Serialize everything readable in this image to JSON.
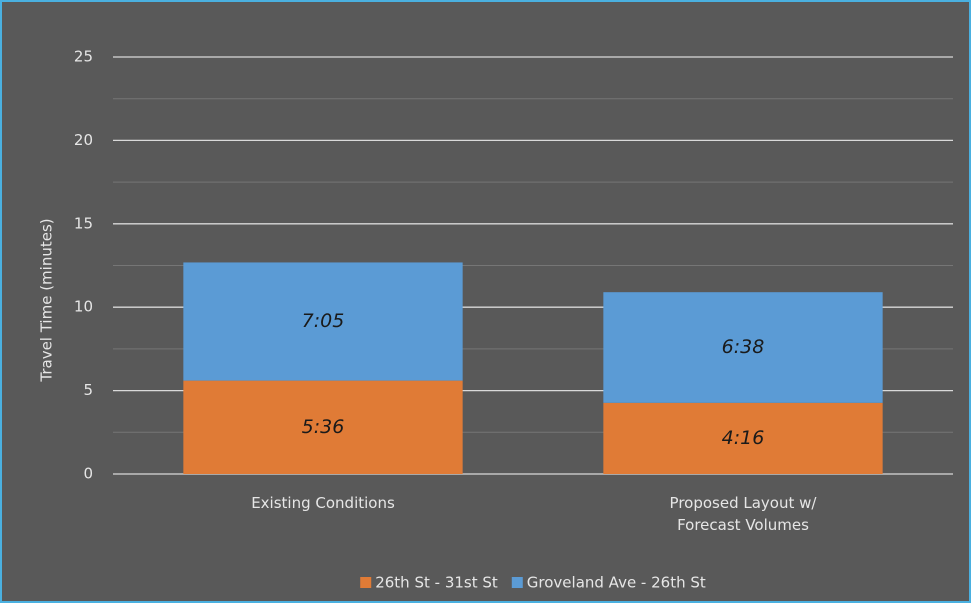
{
  "chart_data": {
    "type": "stacked_bar",
    "y_axis_label": "Travel Time (minutes)",
    "categories": [
      "Existing Conditions",
      "Proposed Layout w/ Forecast Volumes"
    ],
    "series": [
      {
        "name": "26th St - 31st St",
        "color": "#e07b36",
        "values": [
          5.6,
          4.267
        ],
        "value_labels": [
          "5:36",
          "4:16"
        ]
      },
      {
        "name": "Groveland Ave - 26th St",
        "color": "#5b9bd5",
        "values": [
          7.083,
          6.633
        ],
        "value_labels": [
          "7:05",
          "6:38"
        ]
      }
    ],
    "ylim": [
      0,
      25
    ],
    "yticks": [
      0,
      5,
      10,
      15,
      20,
      25
    ],
    "minor_yticks": [
      2.5,
      7.5,
      12.5,
      17.5,
      22.5
    ],
    "grid": true,
    "legend": "bottom"
  }
}
